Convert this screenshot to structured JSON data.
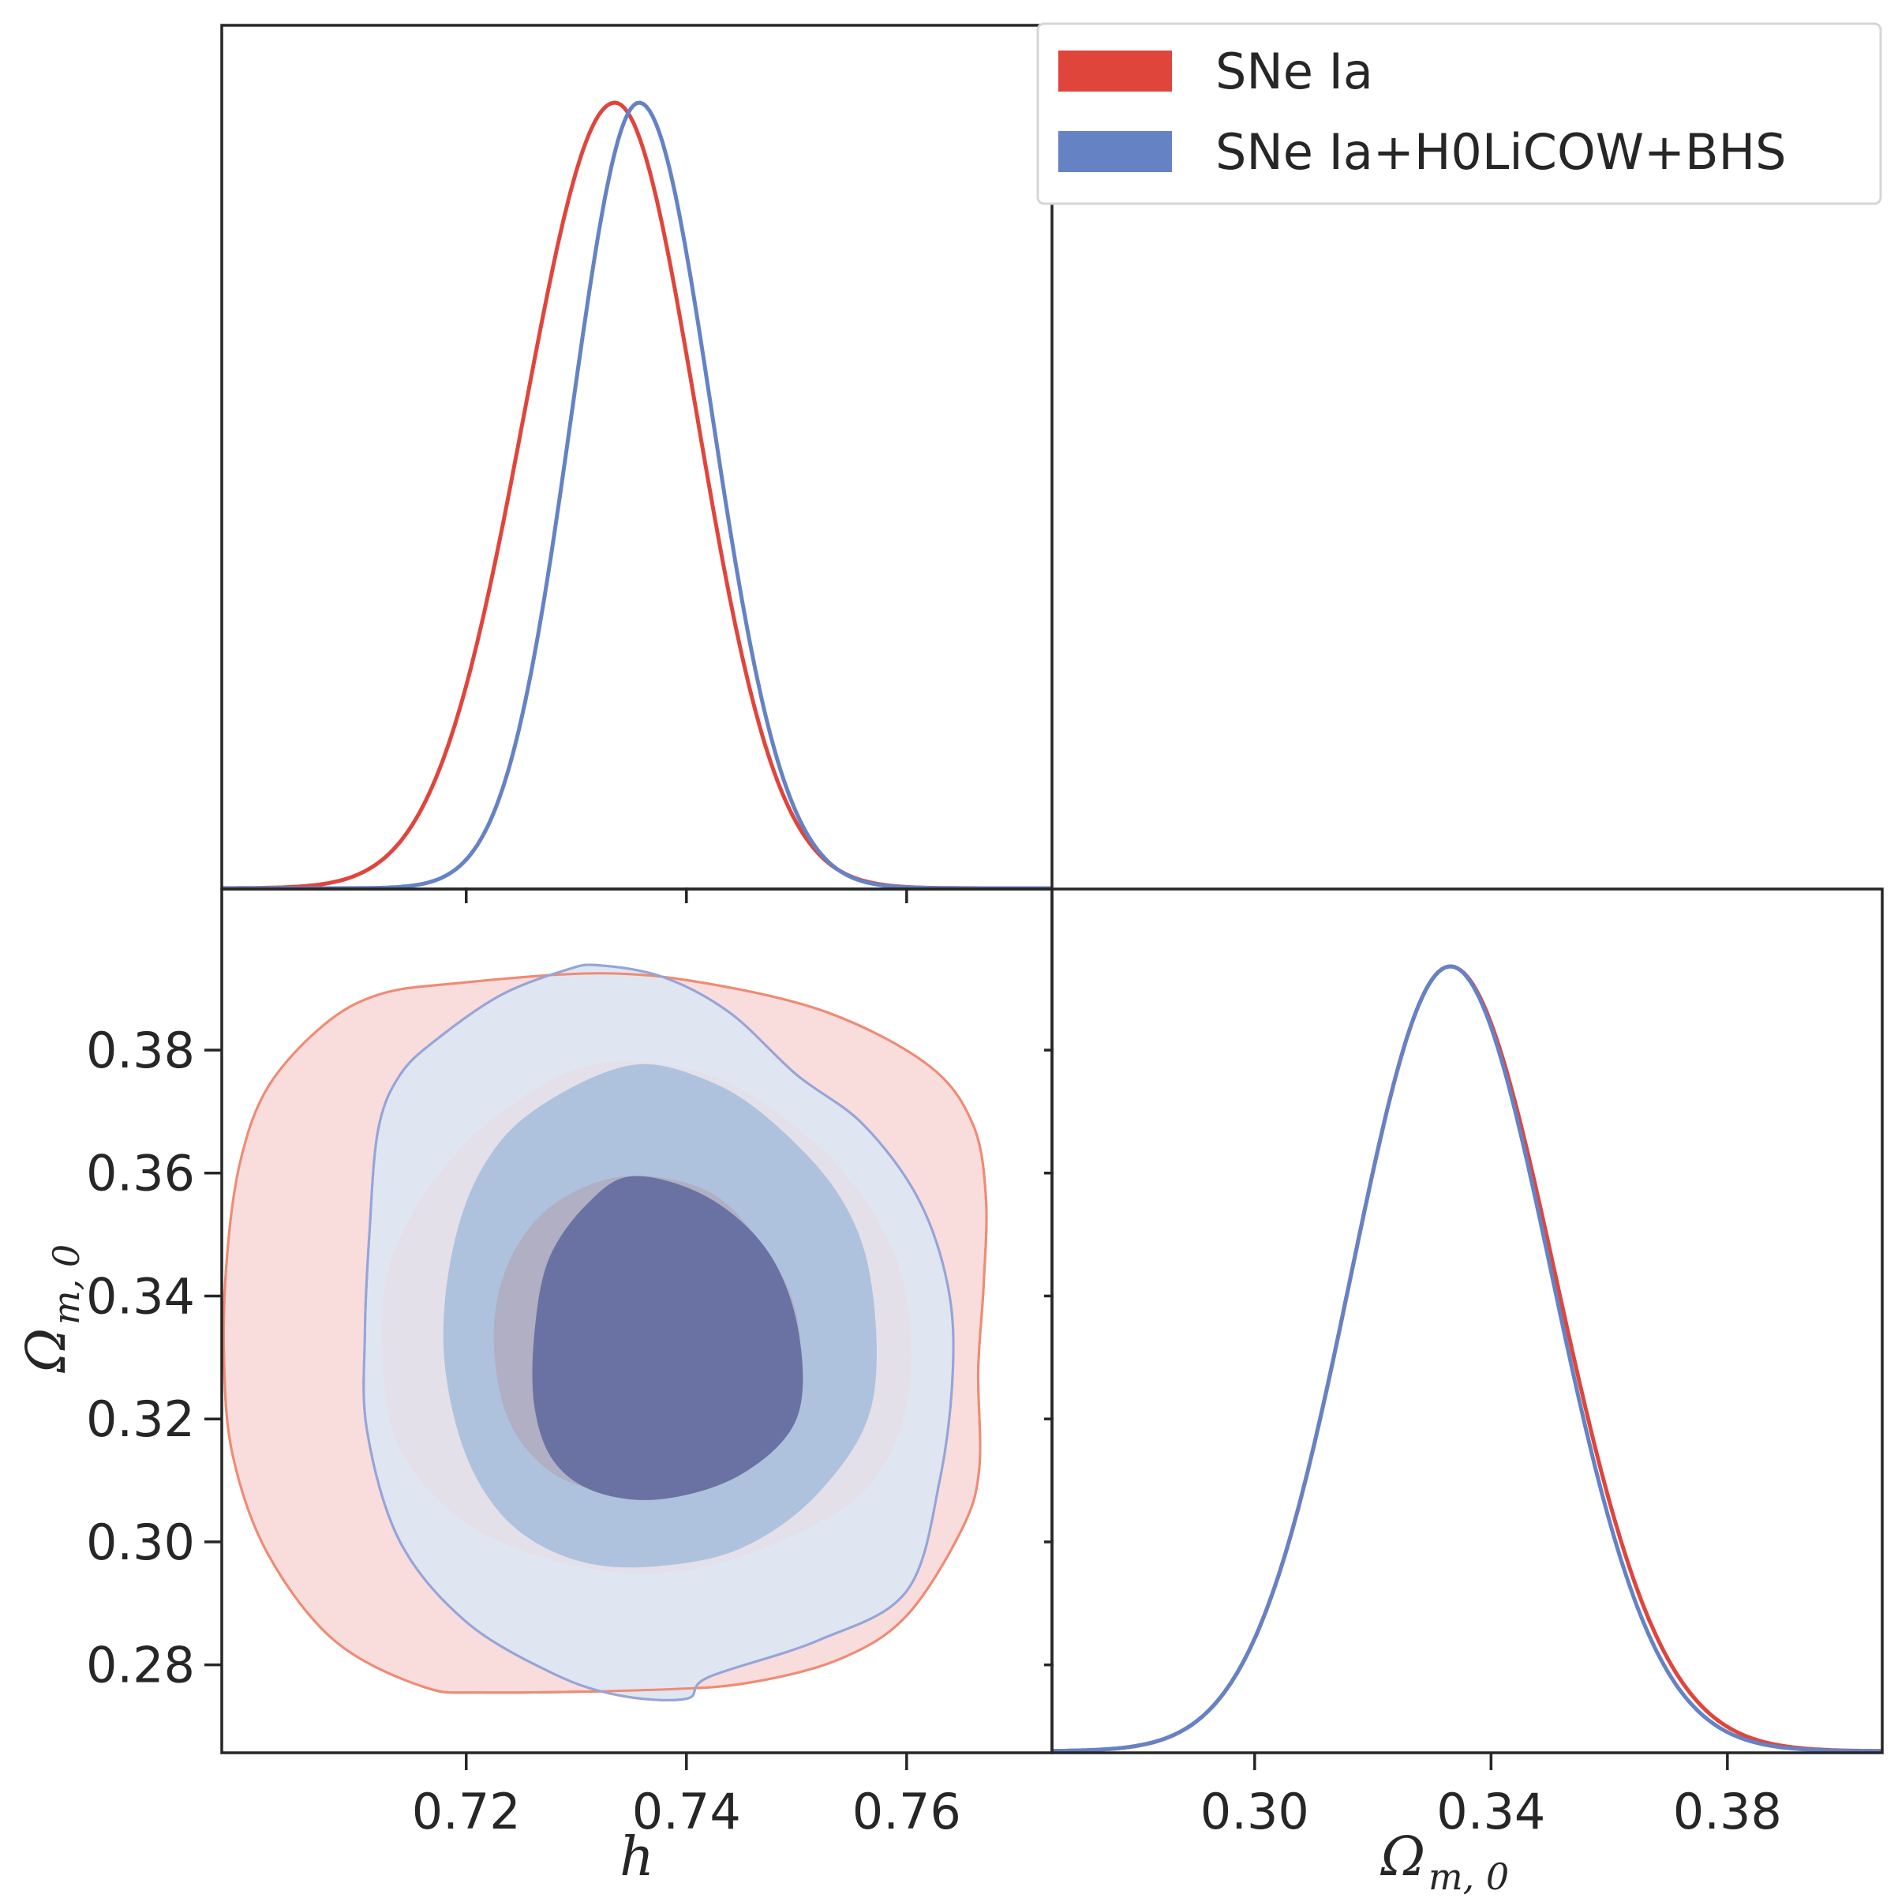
{
  "chart_data": {
    "type": "corner",
    "colors": {
      "sne": "#e0453c",
      "combined": "#6582c4",
      "sne_fill_outer": "#f9dcdc",
      "sne_fill_inner": "#b0afc3",
      "combined_fill_outer": "#dfe6f1",
      "combined_fill_inner": "#aec2de",
      "overlap_outer": "#e4e0ea",
      "overlap_inner": "#6a72a4",
      "sne_contour_line": "#ef8b74",
      "combined_contour_line": "#95a5d8"
    },
    "legend": {
      "placement": "top-right",
      "entries": [
        "SNe Ia",
        "SNe Ia+H0LiCOW+BHS"
      ]
    },
    "parameters": [
      {
        "key": "h",
        "label": "h",
        "range": [
          0.6978,
          0.7732
        ],
        "ticks": [
          "0.72",
          "0.74",
          "0.76"
        ],
        "tick_values": [
          0.72,
          0.74,
          0.76
        ]
      },
      {
        "key": "om",
        "label_main": "Ω",
        "label_sub": "m, 0",
        "range": [
          0.2657,
          0.4062
        ],
        "ticks": [
          "0.30",
          "0.34",
          "0.38"
        ],
        "tick_values": [
          0.3,
          0.34,
          0.38
        ],
        "ytick_values": [
          0.28,
          0.3,
          0.32,
          0.34,
          0.36,
          0.38
        ],
        "yticks": [
          "0.28",
          "0.30",
          "0.32",
          "0.34",
          "0.36",
          "0.38"
        ]
      }
    ],
    "marginals": {
      "h": [
        {
          "name": "SNe Ia",
          "mean": 0.7335,
          "sigma_left": 0.0082,
          "sigma_right": 0.0074
        },
        {
          "name": "SNe Ia+H0LiCOW+BHS",
          "mean": 0.7357,
          "sigma_left": 0.0061,
          "sigma_right": 0.0066
        }
      ],
      "om": [
        {
          "name": "SNe Ia",
          "mean": 0.3331,
          "sigma_left": 0.0168,
          "sigma_right": 0.0178
        },
        {
          "name": "SNe Ia+H0LiCOW+BHS",
          "mean": 0.3331,
          "sigma_left": 0.0168,
          "sigma_right": 0.0172
        }
      ]
    },
    "contours_2d": [
      {
        "name": "SNe Ia",
        "level": "95%",
        "points": [
          [
            0.7187,
            0.3908
          ],
          [
            0.732,
            0.3925
          ],
          [
            0.742,
            0.3908
          ],
          [
            0.753,
            0.386
          ],
          [
            0.762,
            0.3775
          ],
          [
            0.766,
            0.368
          ],
          [
            0.7672,
            0.356
          ],
          [
            0.767,
            0.342
          ],
          [
            0.7665,
            0.328
          ],
          [
            0.7666,
            0.312
          ],
          [
            0.765,
            0.302
          ],
          [
            0.76,
            0.288
          ],
          [
            0.754,
            0.281
          ],
          [
            0.746,
            0.2772
          ],
          [
            0.738,
            0.276
          ],
          [
            0.722,
            0.2755
          ],
          [
            0.716,
            0.2765
          ],
          [
            0.708,
            0.284
          ],
          [
            0.702,
            0.298
          ],
          [
            0.6988,
            0.314
          ],
          [
            0.698,
            0.33
          ],
          [
            0.6983,
            0.347
          ],
          [
            0.6995,
            0.362
          ],
          [
            0.702,
            0.374
          ],
          [
            0.707,
            0.384
          ],
          [
            0.712,
            0.389
          ]
        ]
      },
      {
        "name": "SNe Ia+H0LiCOW+BHS",
        "level": "95%",
        "points": [
          [
            0.7232,
            0.389
          ],
          [
            0.729,
            0.393
          ],
          [
            0.732,
            0.3938
          ],
          [
            0.738,
            0.3918
          ],
          [
            0.744,
            0.386
          ],
          [
            0.75,
            0.376
          ],
          [
            0.756,
            0.368
          ],
          [
            0.761,
            0.356
          ],
          [
            0.7637,
            0.342
          ],
          [
            0.7642,
            0.328
          ],
          [
            0.763,
            0.31
          ],
          [
            0.76,
            0.292
          ],
          [
            0.752,
            0.284
          ],
          [
            0.742,
            0.278
          ],
          [
            0.74,
            0.2745
          ],
          [
            0.734,
            0.275
          ],
          [
            0.728,
            0.2785
          ],
          [
            0.72,
            0.287
          ],
          [
            0.714,
            0.3
          ],
          [
            0.711,
            0.318
          ],
          [
            0.7108,
            0.334
          ],
          [
            0.7112,
            0.35
          ],
          [
            0.712,
            0.367
          ],
          [
            0.714,
            0.376
          ],
          [
            0.7175,
            0.382
          ]
        ]
      },
      {
        "name": "SNe Ia",
        "level": "68%",
        "points": [
          [
            0.7318,
            0.3778
          ],
          [
            0.742,
            0.376
          ],
          [
            0.751,
            0.366
          ],
          [
            0.7568,
            0.354
          ],
          [
            0.76,
            0.34
          ],
          [
            0.76,
            0.322
          ],
          [
            0.756,
            0.308
          ],
          [
            0.747,
            0.299
          ],
          [
            0.738,
            0.295
          ],
          [
            0.729,
            0.2965
          ],
          [
            0.72,
            0.303
          ],
          [
            0.714,
            0.315
          ],
          [
            0.7124,
            0.33
          ],
          [
            0.7132,
            0.346
          ],
          [
            0.718,
            0.361
          ],
          [
            0.724,
            0.371
          ]
        ]
      },
      {
        "name": "SNe Ia+H0LiCOW+BHS",
        "level": "68%",
        "points": [
          [
            0.7348,
            0.3775
          ],
          [
            0.742,
            0.375
          ],
          [
            0.748,
            0.368
          ],
          [
            0.754,
            0.356
          ],
          [
            0.7568,
            0.342
          ],
          [
            0.7568,
            0.322
          ],
          [
            0.752,
            0.308
          ],
          [
            0.745,
            0.299
          ],
          [
            0.737,
            0.296
          ],
          [
            0.73,
            0.297
          ],
          [
            0.724,
            0.303
          ],
          [
            0.72,
            0.314
          ],
          [
            0.718,
            0.33
          ],
          [
            0.7186,
            0.346
          ],
          [
            0.7212,
            0.36
          ],
          [
            0.726,
            0.37
          ]
        ]
      },
      {
        "name": "SNe Ia",
        "level": "inner",
        "points": [
          [
            0.7345,
            0.3595
          ],
          [
            0.742,
            0.357
          ],
          [
            0.747,
            0.348
          ],
          [
            0.75,
            0.337
          ],
          [
            0.75,
            0.324
          ],
          [
            0.747,
            0.314
          ],
          [
            0.741,
            0.309
          ],
          [
            0.734,
            0.308
          ],
          [
            0.728,
            0.311
          ],
          [
            0.7238,
            0.32
          ],
          [
            0.7225,
            0.334
          ],
          [
            0.724,
            0.346
          ],
          [
            0.728,
            0.355
          ]
        ]
      },
      {
        "name": "SNe Ia+H0LiCOW+BHS",
        "level": "inner",
        "points": [
          [
            0.7352,
            0.3595
          ],
          [
            0.742,
            0.356
          ],
          [
            0.7475,
            0.347
          ],
          [
            0.7502,
            0.334
          ],
          [
            0.75,
            0.32
          ],
          [
            0.745,
            0.311
          ],
          [
            0.738,
            0.307
          ],
          [
            0.732,
            0.308
          ],
          [
            0.728,
            0.313
          ],
          [
            0.7262,
            0.322
          ],
          [
            0.7262,
            0.334
          ],
          [
            0.7275,
            0.346
          ],
          [
            0.731,
            0.355
          ]
        ]
      }
    ]
  }
}
